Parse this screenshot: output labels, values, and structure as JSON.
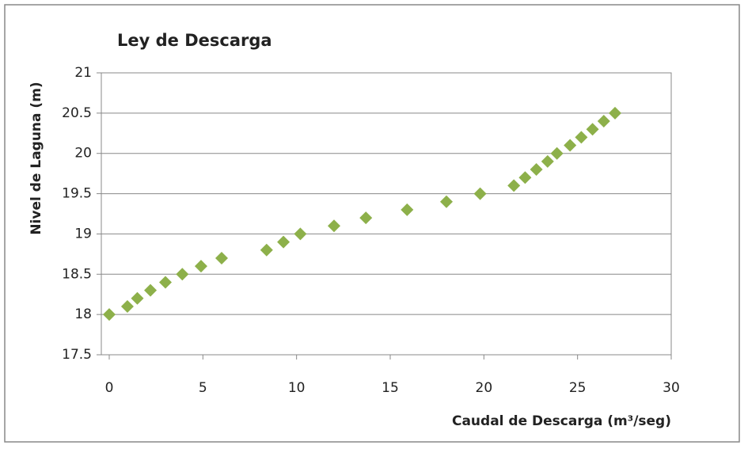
{
  "chart_data": {
    "type": "scatter",
    "title": "Ley de Descarga",
    "x_label": "Caudal de Descarga (m³/seg)",
    "y_label": "Nivel de Laguna (m)",
    "series": [
      {
        "color": "#8db04a",
        "x": [
          0,
          0.97,
          1.5,
          2.2,
          3.0,
          3.9,
          4.9,
          6.0,
          8.4,
          9.3,
          10.2,
          12.0,
          13.7,
          15.9,
          18.0,
          19.8,
          21.6,
          22.2,
          22.8,
          23.4,
          23.9,
          24.6,
          25.2,
          25.8,
          26.4,
          27.0
        ],
        "values": [
          18,
          18.1,
          18.2,
          18.3,
          18.4,
          18.5,
          18.6,
          18.7,
          18.8,
          18.9,
          19.0,
          19.1,
          19.2,
          19.3,
          19.4,
          19.5,
          19.6,
          19.7,
          19.8,
          19.9,
          20.0,
          20.1,
          20.2,
          20.3,
          20.4,
          20.5
        ]
      }
    ],
    "xlim": [
      0,
      30
    ],
    "xticks": [
      0,
      5,
      10,
      15,
      20,
      25,
      30
    ],
    "ylim": [
      17.5,
      21
    ],
    "yticks": [
      17.5,
      18,
      18.5,
      19,
      19.5,
      20,
      20.5,
      21
    ],
    "grid": true
  }
}
